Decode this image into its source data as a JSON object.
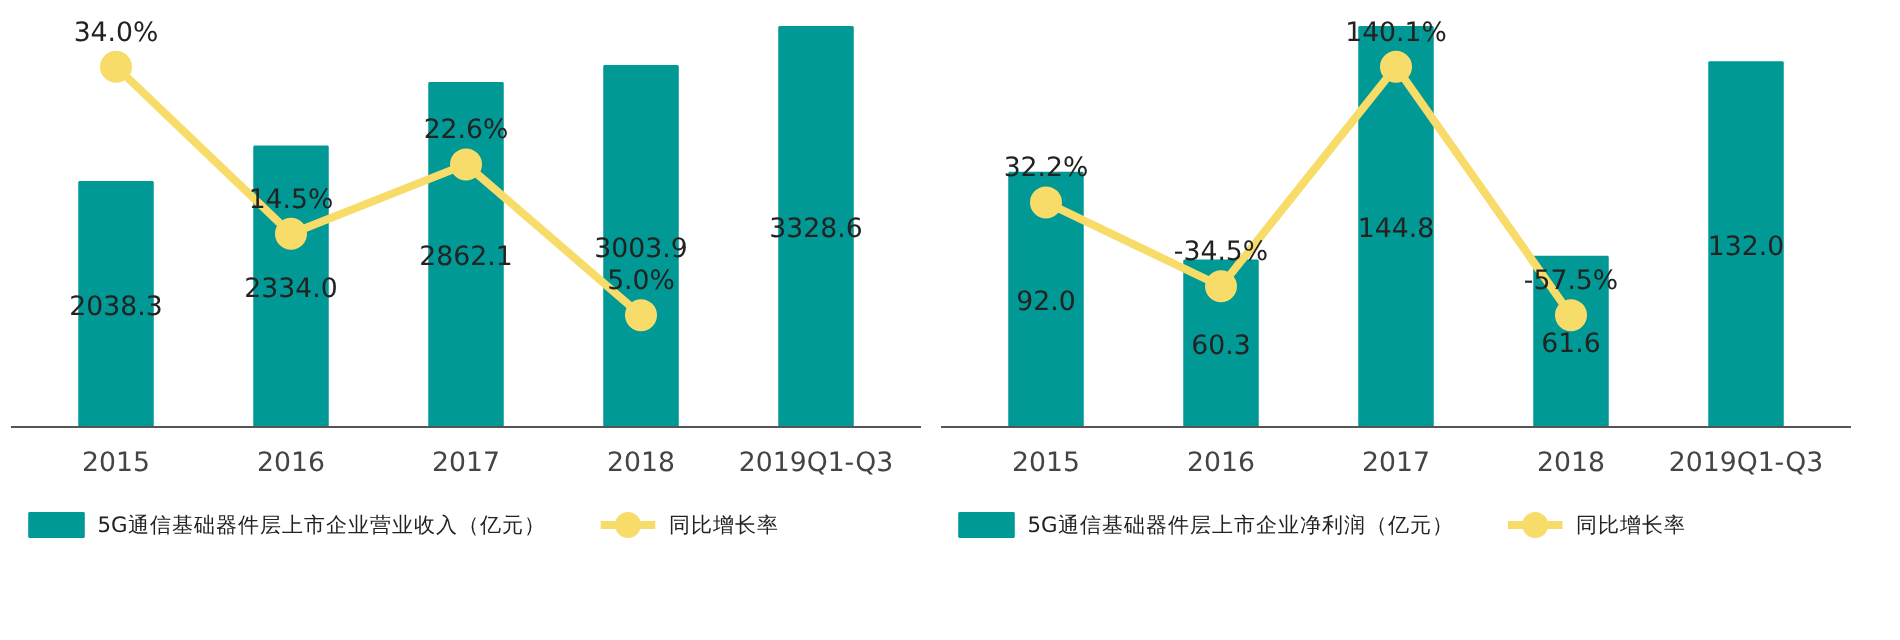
{
  "chart_data": [
    {
      "type": "bar",
      "categories": [
        "2015",
        "2016",
        "2017",
        "2018",
        "2019Q1-Q3"
      ],
      "tick_labels": "x",
      "grid": false,
      "legend": "bottom",
      "series": [
        {
          "name": "5G通信基础器件层上市企业营业收入（亿元）",
          "color": "#009995",
          "values": [
            2038.3,
            2334.0,
            2862.1,
            3003.9,
            3328.6
          ],
          "value_labels": [
            "2038.3",
            "2334.0",
            "2862.1",
            "3003.9",
            "3328.6"
          ]
        },
        {
          "name": "同比增长率",
          "type": "line",
          "axis": "y2",
          "marker": "circle",
          "color": "#f8dc6a",
          "values": [
            34.0,
            14.5,
            22.6,
            5.0,
            null
          ],
          "value_labels": [
            "34.0%",
            "14.5%",
            "22.6%",
            "5.0%",
            null
          ]
        }
      ]
    },
    {
      "type": "bar",
      "categories": [
        "2015",
        "2016",
        "2017",
        "2018",
        "2019Q1-Q3"
      ],
      "tick_labels": "x",
      "grid": false,
      "legend": "bottom",
      "series": [
        {
          "name": "5G通信基础器件层上市企业净利润（亿元）",
          "color": "#009995",
          "values": [
            92.0,
            60.3,
            144.8,
            61.6,
            132.0
          ],
          "value_labels": [
            "92.0",
            "60.3",
            "144.8",
            "61.6",
            "132.0"
          ]
        },
        {
          "name": "同比增长率",
          "type": "line",
          "axis": "y2",
          "marker": "circle",
          "color": "#f8dc6a",
          "values": [
            32.2,
            -34.5,
            140.1,
            -57.5,
            null
          ],
          "value_labels": [
            "32.2%",
            "-34.5%",
            "140.1%",
            "-57.5%",
            null
          ]
        }
      ]
    }
  ]
}
